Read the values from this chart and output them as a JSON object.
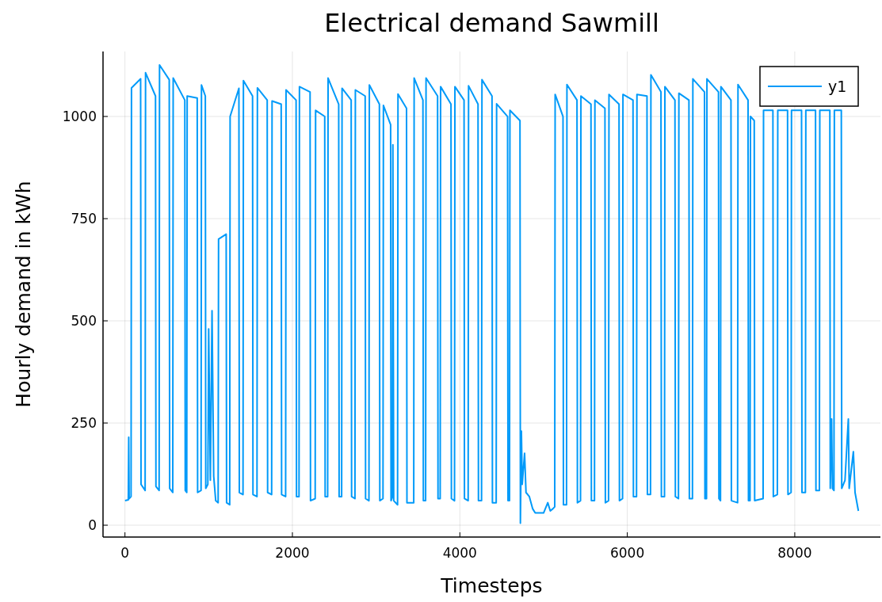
{
  "chart_data": {
    "type": "line",
    "title": "Electrical demand Sawmill",
    "xlabel": "Timesteps",
    "ylabel": "Hourly demand in kWh",
    "xlim": [
      -262,
      9023
    ],
    "xticks": [
      0,
      2000,
      4000,
      6000,
      8000
    ],
    "ylim": [
      -29,
      1159
    ],
    "yticks": [
      0,
      250,
      500,
      750,
      1000
    ],
    "grid": true,
    "legend": "top right",
    "line_style": "solid",
    "series": [
      {
        "name": "y1",
        "color": "#009af9",
        "x": [
          1,
          40,
          45,
          50,
          73,
          78,
          187,
          192,
          241,
          246,
          365,
          370,
          408,
          413,
          529,
          534,
          571,
          576,
          715,
          720,
          738,
          743,
          863,
          868,
          909,
          914,
          960,
          965,
          990,
          1000,
          1020,
          1040,
          1060,
          1084,
          1113,
          1118,
          1209,
          1214,
          1251,
          1256,
          1361,
          1366,
          1410,
          1415,
          1524,
          1529,
          1577,
          1582,
          1699,
          1704,
          1752,
          1757,
          1866,
          1871,
          1919,
          1924,
          2044,
          2049,
          2079,
          2084,
          2211,
          2216,
          2272,
          2277,
          2386,
          2391,
          2421,
          2426,
          2553,
          2558,
          2588,
          2593,
          2702,
          2707,
          2747,
          2752,
          2869,
          2874,
          2914,
          2919,
          3039,
          3044,
          3082,
          3087,
          3173,
          3178,
          3195,
          3200,
          3210,
          3256,
          3261,
          3363,
          3368,
          3449,
          3454,
          3559,
          3564,
          3591,
          3596,
          3734,
          3739,
          3765,
          3770,
          3894,
          3899,
          3936,
          3941,
          4050,
          4055,
          4099,
          4104,
          4217,
          4222,
          4259,
          4264,
          4384,
          4389,
          4434,
          4439,
          4570,
          4575,
          4593,
          4598,
          4718,
          4723,
          4735,
          4745,
          4773,
          4790,
          4830,
          4870,
          4900,
          5000,
          5050,
          5080,
          5110,
          5133,
          5138,
          5232,
          5237,
          5274,
          5279,
          5399,
          5404,
          5441,
          5446,
          5566,
          5571,
          5608,
          5613,
          5733,
          5738,
          5776,
          5781,
          5901,
          5906,
          5943,
          5948,
          6068,
          6073,
          6110,
          6115,
          6235,
          6240,
          6277,
          6282,
          6402,
          6407,
          6444,
          6449,
          6569,
          6574,
          6611,
          6616,
          6736,
          6741,
          6778,
          6783,
          6922,
          6927,
          6946,
          6951,
          7089,
          7094,
          7113,
          7118,
          7238,
          7243,
          7317,
          7322,
          7442,
          7447,
          7466,
          7471,
          7516,
          7521,
          7622,
          7627,
          7739,
          7744,
          7792,
          7797,
          7914,
          7919,
          7956,
          7961,
          8081,
          8086,
          8127,
          8132,
          8248,
          8253,
          8294,
          8299,
          8419,
          8424,
          8440,
          8450,
          8468,
          8473,
          8556,
          8561,
          8600,
          8640,
          8650,
          8700,
          8720,
          8760
        ],
        "values": [
          60,
          62,
          215,
          65,
          70,
          1070,
          1092,
          100,
          85,
          1107,
          1050,
          95,
          85,
          1126,
          1090,
          90,
          80,
          1094,
          1040,
          85,
          80,
          1050,
          1045,
          80,
          85,
          1077,
          1050,
          90,
          100,
          480,
          110,
          525,
          120,
          60,
          55,
          700,
          712,
          55,
          50,
          1000,
          1069,
          80,
          75,
          1088,
          1050,
          75,
          70,
          1070,
          1040,
          80,
          75,
          1038,
          1030,
          75,
          70,
          1065,
          1040,
          70,
          70,
          1073,
          1060,
          60,
          65,
          1015,
          1000,
          70,
          70,
          1094,
          1030,
          70,
          70,
          1069,
          1040,
          70,
          65,
          1065,
          1050,
          65,
          60,
          1077,
          1030,
          60,
          65,
          1027,
          980,
          60,
          70,
          931,
          60,
          50,
          1055,
          1020,
          55,
          55,
          1094,
          1040,
          60,
          60,
          1094,
          1050,
          65,
          65,
          1073,
          1030,
          65,
          60,
          1073,
          1040,
          65,
          60,
          1075,
          1030,
          60,
          60,
          1090,
          1050,
          55,
          55,
          1031,
          1000,
          60,
          60,
          1015,
          990,
          5,
          230,
          100,
          176,
          80,
          70,
          40,
          30,
          30,
          55,
          35,
          40,
          45,
          1054,
          1000,
          50,
          50,
          1078,
          1040,
          55,
          60,
          1050,
          1030,
          60,
          60,
          1040,
          1020,
          55,
          60,
          1054,
          1030,
          60,
          65,
          1054,
          1040,
          70,
          70,
          1054,
          1050,
          75,
          75,
          1102,
          1060,
          70,
          70,
          1073,
          1040,
          70,
          65,
          1057,
          1040,
          65,
          65,
          1092,
          1060,
          65,
          65,
          1092,
          1060,
          65,
          60,
          1073,
          1040,
          60,
          55,
          1078,
          1040,
          60,
          60,
          1000,
          990,
          60,
          65,
          1015,
          1015,
          70,
          75,
          1015,
          1015,
          75,
          80,
          1015,
          1015,
          80,
          80,
          1015,
          1015,
          85,
          85,
          1015,
          1015,
          90,
          260,
          90,
          85,
          1015,
          1015,
          90,
          110,
          260,
          90,
          180,
          80,
          35
        ]
      }
    ]
  }
}
